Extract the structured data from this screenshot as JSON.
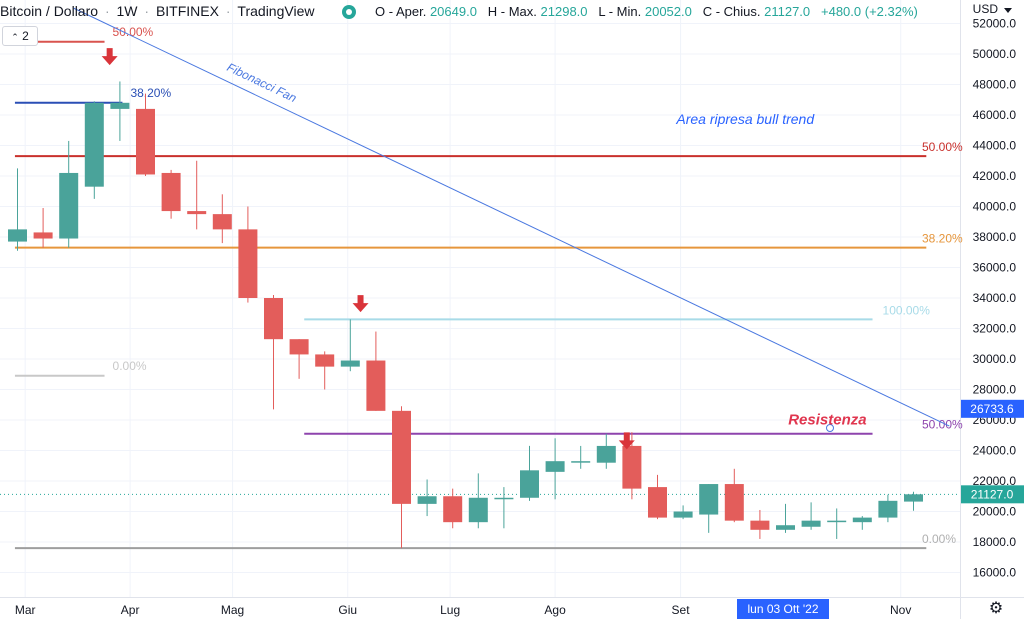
{
  "header": {
    "symbol": "Bitcoin / Dollaro",
    "interval": "1W",
    "exchange": "BITFINEX",
    "source": "TradingView",
    "sep": "·",
    "visibility_icon": "eye-icon",
    "open_label": "O - Aper.",
    "open": "20649.0",
    "high_label": "H - Max.",
    "high": "21298.0",
    "low_label": "L - Min.",
    "low": "20052.0",
    "close_label": "C - Chius.",
    "close": "21127.0",
    "change": "+480.0 (+2.32%)",
    "indicator_badge": "2",
    "currency": "USD"
  },
  "crosshair_date": "lun 03 Ott '22",
  "settings_icon": "gear-icon",
  "chart_data": {
    "type": "candlestick",
    "interval": "1W",
    "yaxis": {
      "min": 14700,
      "max": 53000,
      "ticks": [
        "52000.0",
        "50000.0",
        "48000.0",
        "46000.0",
        "44000.0",
        "42000.0",
        "40000.0",
        "38000.0",
        "36000.0",
        "34000.0",
        "32000.0",
        "30000.0",
        "28000.0",
        "26000.0",
        "24000.0",
        "22000.0",
        "20000.0",
        "18000.0",
        "16000.0"
      ],
      "tick_values": [
        52000,
        50000,
        48000,
        46000,
        44000,
        42000,
        40000,
        38000,
        36000,
        34000,
        32000,
        30000,
        28000,
        26000,
        24000,
        22000,
        20000,
        18000,
        16000
      ],
      "badges": [
        {
          "label": "26733.6",
          "value": 26733.6,
          "color": "#2962ff"
        },
        {
          "label": "21127.0",
          "value": 21127,
          "color": "#26a69a"
        }
      ]
    },
    "xaxis": {
      "ticks": [
        "Mar",
        "Apr",
        "Mag",
        "Giu",
        "Lug",
        "Ago",
        "Set",
        "Nov"
      ],
      "tick_index": [
        0.3,
        4.4,
        8.4,
        12.9,
        16.9,
        21.0,
        25.9,
        34.5
      ]
    },
    "candles": [
      {
        "o": 37700,
        "h": 42500,
        "l": 37100,
        "c": 38500
      },
      {
        "o": 38300,
        "h": 39900,
        "l": 37300,
        "c": 37900
      },
      {
        "o": 37900,
        "h": 44300,
        "l": 37300,
        "c": 42200
      },
      {
        "o": 41300,
        "h": 46900,
        "l": 40500,
        "c": 46800
      },
      {
        "o": 46400,
        "h": 48200,
        "l": 44300,
        "c": 46800
      },
      {
        "o": 46400,
        "h": 47400,
        "l": 42000,
        "c": 42100
      },
      {
        "o": 42200,
        "h": 42400,
        "l": 39200,
        "c": 39700
      },
      {
        "o": 39700,
        "h": 43000,
        "l": 38500,
        "c": 39500
      },
      {
        "o": 39500,
        "h": 40800,
        "l": 37600,
        "c": 38500
      },
      {
        "o": 38500,
        "h": 40000,
        "l": 33700,
        "c": 34000
      },
      {
        "o": 34000,
        "h": 34200,
        "l": 26700,
        "c": 31300
      },
      {
        "o": 31300,
        "h": 31300,
        "l": 28700,
        "c": 30300
      },
      {
        "o": 30300,
        "h": 30500,
        "l": 28000,
        "c": 29500
      },
      {
        "o": 29500,
        "h": 32600,
        "l": 29200,
        "c": 29900
      },
      {
        "o": 29900,
        "h": 31800,
        "l": 26600,
        "c": 26600
      },
      {
        "o": 26600,
        "h": 26900,
        "l": 17600,
        "c": 20500
      },
      {
        "o": 20500,
        "h": 22100,
        "l": 19700,
        "c": 21000
      },
      {
        "o": 21000,
        "h": 21500,
        "l": 18900,
        "c": 19300
      },
      {
        "o": 19300,
        "h": 22500,
        "l": 18900,
        "c": 20900
      },
      {
        "o": 20900,
        "h": 21600,
        "l": 18900,
        "c": 20900
      },
      {
        "o": 20900,
        "h": 24300,
        "l": 20700,
        "c": 22700
      },
      {
        "o": 22600,
        "h": 24800,
        "l": 20800,
        "c": 23300
      },
      {
        "o": 23300,
        "h": 24300,
        "l": 22800,
        "c": 23300
      },
      {
        "o": 23200,
        "h": 25100,
        "l": 22800,
        "c": 24300
      },
      {
        "o": 24300,
        "h": 25200,
        "l": 20800,
        "c": 21500
      },
      {
        "o": 21600,
        "h": 22400,
        "l": 19500,
        "c": 19600
      },
      {
        "o": 19600,
        "h": 20400,
        "l": 19500,
        "c": 20000
      },
      {
        "o": 19800,
        "h": 21800,
        "l": 18600,
        "c": 21800
      },
      {
        "o": 21800,
        "h": 22800,
        "l": 19300,
        "c": 19400
      },
      {
        "o": 19400,
        "h": 20100,
        "l": 18200,
        "c": 18800
      },
      {
        "o": 18800,
        "h": 20500,
        "l": 18600,
        "c": 19100
      },
      {
        "o": 19000,
        "h": 20600,
        "l": 18800,
        "c": 19400
      },
      {
        "o": 19300,
        "h": 20200,
        "l": 18200,
        "c": 19400
      },
      {
        "o": 19300,
        "h": 19700,
        "l": 18800,
        "c": 19600
      },
      {
        "o": 19600,
        "h": 21100,
        "l": 19300,
        "c": 20700
      },
      {
        "o": 20649,
        "h": 21298,
        "l": 20052,
        "c": 21127
      }
    ],
    "levels": [
      {
        "value": 50800,
        "from": -0.1,
        "to": 3.4,
        "color": "#d9534f",
        "label": "50.00%",
        "label_color": "#d9534f",
        "label_side": "right-of-end"
      },
      {
        "value": 46800,
        "from": -0.1,
        "to": 4.1,
        "color": "#2a4fb5",
        "label": "38.20%",
        "label_color": "#2a4fb5",
        "label_side": "right-of-end"
      },
      {
        "value": 43300,
        "from": -0.1,
        "to": 35.5,
        "color": "#c9302c",
        "label": "50.00%",
        "label_color": "#c9302c",
        "label_side": "right"
      },
      {
        "value": 37300,
        "from": -0.1,
        "to": 35.5,
        "color": "#e6963c",
        "label": "38.20%",
        "label_color": "#e6963c",
        "label_side": "right"
      },
      {
        "value": 32600,
        "from": 11.2,
        "to": 33.4,
        "color": "#a8dbe8",
        "label": "100.00%",
        "label_color": "#a8dbe8",
        "label_side": "right"
      },
      {
        "value": 25100,
        "from": 11.2,
        "to": 33.4,
        "color": "#8e44ad",
        "label": "50.00%",
        "label_color": "#8e44ad",
        "label_side": "right"
      },
      {
        "value": 17600,
        "from": -0.1,
        "to": 35.5,
        "color": "#9e9e9e",
        "label": "0.00%",
        "label_color": "#b0b0b0",
        "label_side": "right"
      },
      {
        "value": 28900,
        "from": -0.1,
        "to": 3.4,
        "color": "#c8c8c8",
        "label": "0.00%",
        "label_color": "#c8c8c8",
        "label_side": "right-of-end"
      }
    ],
    "fan_line": {
      "from": [
        2.2,
        53000
      ],
      "to": [
        36.4,
        25600
      ],
      "color": "#4a78e0",
      "label": "Fibonacci Fan"
    },
    "last_price_line": 21127,
    "arrows": [
      {
        "index": 3.6,
        "value": 49600
      },
      {
        "index": 13.4,
        "value": 33400
      },
      {
        "index": 23.8,
        "value": 24400
      }
    ],
    "annotations": [
      {
        "text": "Area ripresa bull trend",
        "index": 29.8,
        "value": 45400,
        "color": "#2962ff"
      },
      {
        "text": "Resistenza",
        "index": 31.2,
        "value": 25700,
        "color": "#e0364f"
      }
    ],
    "bull_color": "#4aa39a",
    "bear_color": "#e35d5b",
    "grid": true
  }
}
